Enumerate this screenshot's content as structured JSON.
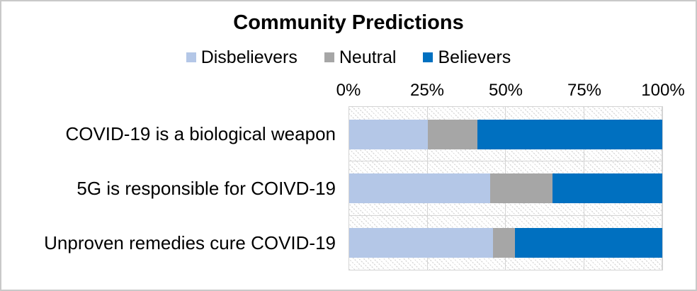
{
  "title": "Community Predictions",
  "legend": {
    "position": "top",
    "items": [
      {
        "label": "Disbelievers",
        "color": "#b4c7e7"
      },
      {
        "label": "Neutral",
        "color": "#a6a6a6"
      },
      {
        "label": "Believers",
        "color": "#0070c0"
      }
    ]
  },
  "axis": {
    "tick_labels": [
      "0%",
      "25%",
      "50%",
      "75%",
      "100%"
    ]
  },
  "chart_data": {
    "type": "bar",
    "orientation": "horizontal-stacked",
    "title": "Community Predictions",
    "categories": [
      "COVID-19 is a biological weapon",
      "5G is responsible for COIVD-19",
      "Unproven remedies cure COVID-19"
    ],
    "series": [
      {
        "name": "Disbelievers",
        "color": "#b4c7e7",
        "values": [
          25,
          45,
          46
        ]
      },
      {
        "name": "Neutral",
        "color": "#a6a6a6",
        "values": [
          16,
          20,
          7
        ]
      },
      {
        "name": "Believers",
        "color": "#0070c0",
        "values": [
          59,
          35,
          47
        ]
      }
    ],
    "value_unit": "percent",
    "xlabel": "",
    "ylabel": "",
    "xlim": [
      0,
      100
    ],
    "x_ticks_percent": [
      0,
      25,
      50,
      75,
      100
    ],
    "grid": true,
    "legend_position": "top",
    "plot_background": "diagonal-hatch"
  },
  "colors": {
    "gridline": "#d4d4d4",
    "plot_border": "#d4d4d4",
    "canvas_border": "#c9c9c9",
    "text": "#000000",
    "background": "#ffffff"
  }
}
